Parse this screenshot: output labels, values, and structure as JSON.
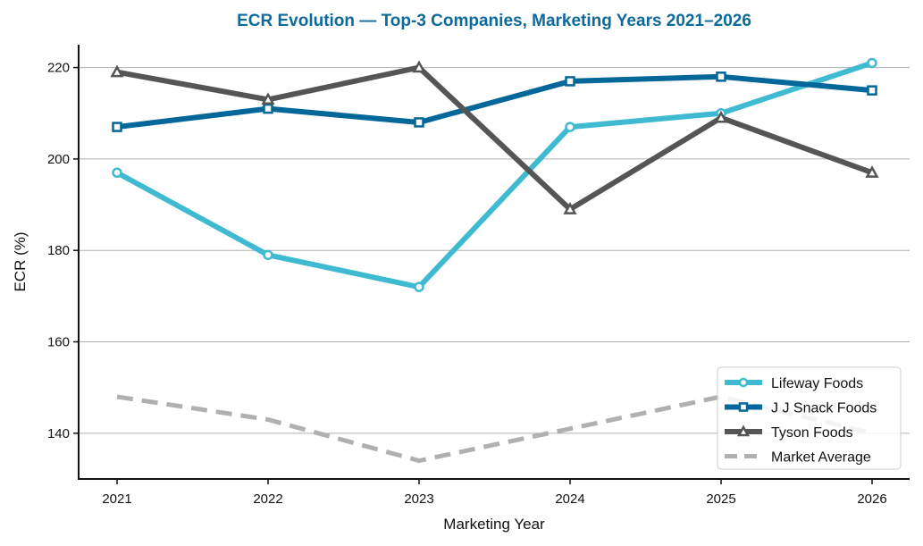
{
  "chart_data": {
    "type": "line",
    "title": "ECR Evolution — Top-3 Companies, Marketing Years 2021–2026",
    "xlabel": "Marketing Year",
    "ylabel": "ECR (%)",
    "x": [
      "2021",
      "2022",
      "2023",
      "2024",
      "2025",
      "2026"
    ],
    "ylim": [
      130,
      225
    ],
    "yticks": [
      140,
      160,
      180,
      200,
      220
    ],
    "grid": "horizontal",
    "legend_position": "bottom-right",
    "series": [
      {
        "name": "Lifeway Foods",
        "color": "#3fbad0",
        "marker": "circle",
        "style": "solid",
        "values": [
          197,
          179,
          172,
          207,
          210,
          221
        ]
      },
      {
        "name": "J J Snack Foods",
        "color": "#046799",
        "marker": "square",
        "style": "solid",
        "values": [
          207,
          211,
          208,
          217,
          218,
          215
        ]
      },
      {
        "name": "Tyson Foods",
        "color": "#555555",
        "marker": "triangle",
        "style": "solid",
        "values": [
          219,
          213,
          220,
          189,
          209,
          197
        ]
      },
      {
        "name": "Market Average",
        "color": "#b0b0b0",
        "marker": "none",
        "style": "dashed",
        "values": [
          148,
          143,
          134,
          141,
          148,
          140
        ]
      }
    ]
  }
}
